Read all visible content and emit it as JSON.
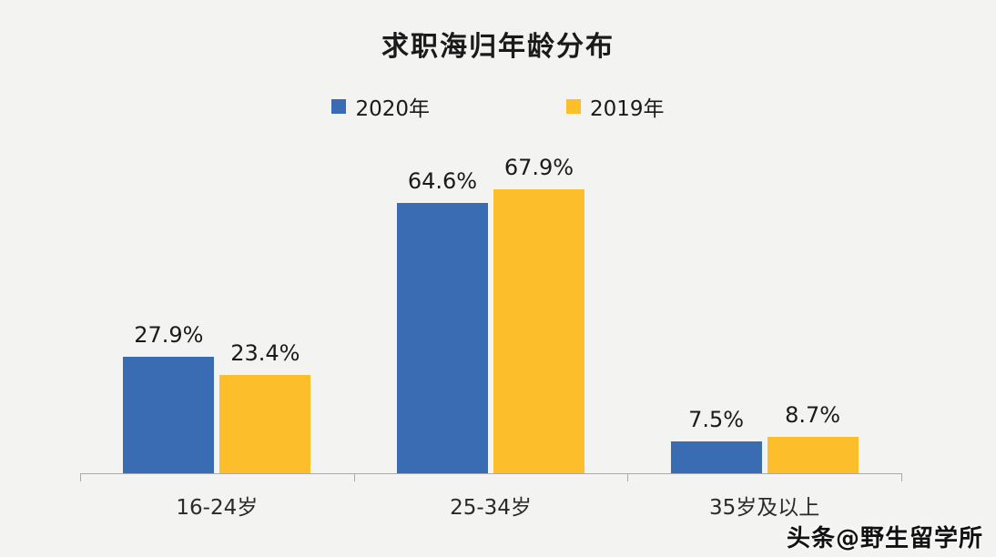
{
  "chart_data": {
    "type": "bar",
    "title": "求职海归年龄分布",
    "categories": [
      "16-24岁",
      "25-34岁",
      "35岁及以上"
    ],
    "series": [
      {
        "name": "2020年",
        "color": "#3A6CB4",
        "values": [
          27.9,
          64.6,
          7.5
        ]
      },
      {
        "name": "2019年",
        "color": "#FDBE2C",
        "values": [
          23.4,
          67.9,
          8.7
        ]
      }
    ],
    "value_suffix": "%",
    "ylim": [
      0,
      75
    ],
    "legend_position": "top",
    "grid": false,
    "xlabel": "",
    "ylabel": ""
  },
  "watermark": "头条@野生留学所",
  "colors": {
    "background": "#f3f3f2",
    "axis": "#a9a9a9",
    "text": "#1a1a1a"
  }
}
